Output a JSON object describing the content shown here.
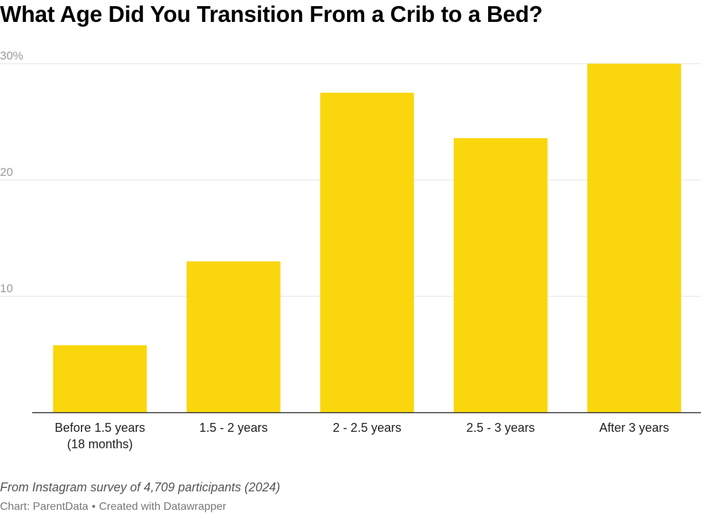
{
  "chart_data": {
    "type": "bar",
    "title": "What Age Did You Transition From a Crib to a Bed?",
    "categories": [
      [
        "Before 1.5 years",
        "(18 months)"
      ],
      [
        "1.5 - 2 years"
      ],
      [
        "2 - 2.5 years"
      ],
      [
        "2.5 - 3 years"
      ],
      [
        "After 3 years"
      ]
    ],
    "values": [
      5.8,
      13.0,
      27.5,
      23.6,
      30.0
    ],
    "ylim": [
      0,
      30
    ],
    "yticks": [
      10,
      20,
      30
    ],
    "ytick_labels": [
      "10",
      "20",
      "30%"
    ],
    "grid": true,
    "bar_color": "#FAD60D",
    "xlabel": "",
    "ylabel": ""
  },
  "footer": {
    "note": "From Instagram survey of 4,709 participants (2024)",
    "credit_source": "Chart: ParentData",
    "credit_separator": "•",
    "credit_tool": "Created with Datawrapper"
  }
}
